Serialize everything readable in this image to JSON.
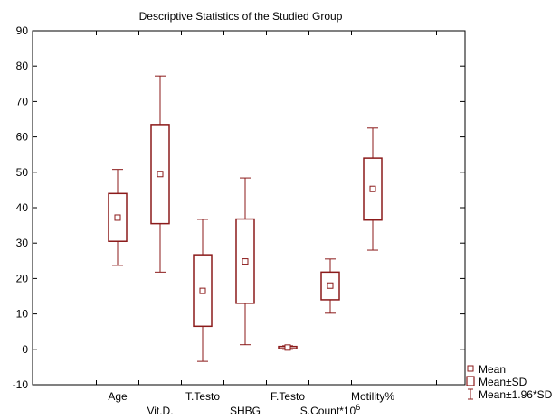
{
  "chart_data": {
    "type": "boxplot",
    "title": "Descriptive Statistics of the Studied Group",
    "xlabel": "",
    "ylabel": "",
    "ylim": [
      -10,
      90
    ],
    "yticks": [
      -10,
      0,
      10,
      20,
      30,
      40,
      50,
      60,
      70,
      80,
      90
    ],
    "grid": false,
    "legend_position": "bottom-right",
    "series_color": "#8b1a1a",
    "categories": [
      {
        "label": "Age",
        "label_row": "upper",
        "mean": 37.2,
        "sd_low": 30.5,
        "sd_high": 44.0,
        "ci_low": 23.7,
        "ci_high": 50.8
      },
      {
        "label": "Vit.D.",
        "label_row": "lower",
        "mean": 49.5,
        "sd_low": 35.5,
        "sd_high": 63.5,
        "ci_low": 21.8,
        "ci_high": 77.2
      },
      {
        "label": "T.Testo",
        "label_row": "upper",
        "mean": 16.5,
        "sd_low": 6.5,
        "sd_high": 26.7,
        "ci_low": -3.4,
        "ci_high": 36.7
      },
      {
        "label": "SHBG",
        "label_row": "lower",
        "mean": 24.8,
        "sd_low": 13.0,
        "sd_high": 36.8,
        "ci_low": 1.3,
        "ci_high": 48.4
      },
      {
        "label": "F.Testo",
        "label_row": "upper",
        "mean": 0.5,
        "sd_low": 0.2,
        "sd_high": 0.8,
        "ci_low": 0.0,
        "ci_high": 1.0
      },
      {
        "label": "S.Count*10",
        "label_superscript": "6",
        "label_row": "lower",
        "mean": 18.0,
        "sd_low": 14.0,
        "sd_high": 21.8,
        "ci_low": 10.2,
        "ci_high": 25.5
      },
      {
        "label": "Motility%",
        "label_row": "upper",
        "mean": 45.3,
        "sd_low": 36.5,
        "sd_high": 54.0,
        "ci_low": 28.0,
        "ci_high": 62.5
      }
    ],
    "legend": [
      {
        "label": "Mean",
        "marker": "mean-square-icon"
      },
      {
        "label": "Mean±SD",
        "marker": "box-icon"
      },
      {
        "label": "Mean±1.96*SD",
        "marker": "whisker-icon"
      }
    ]
  }
}
